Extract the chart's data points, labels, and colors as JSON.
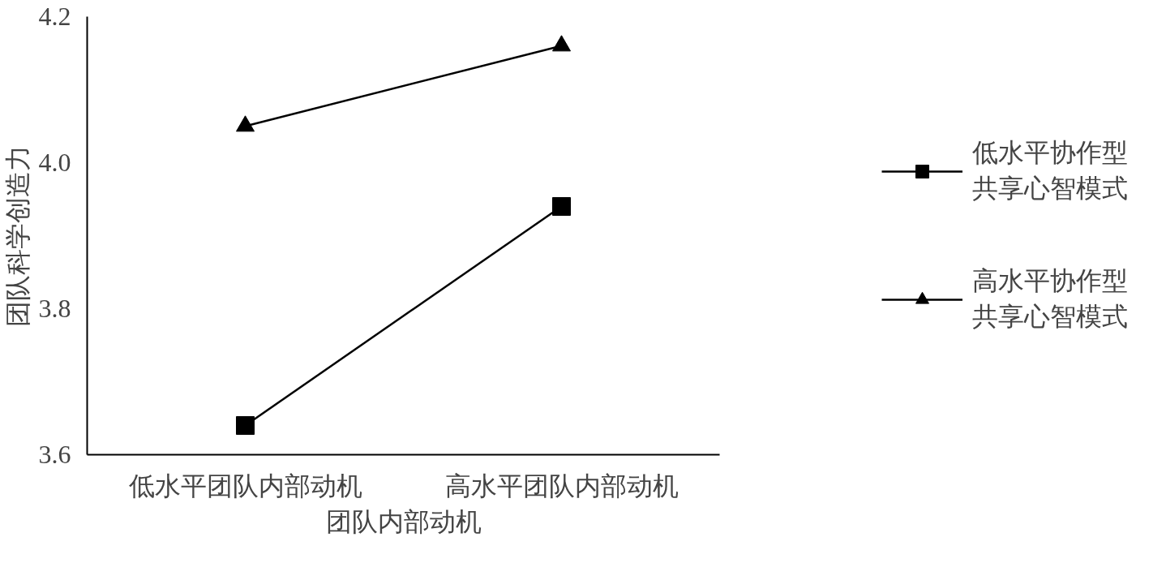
{
  "chart_data": {
    "type": "line",
    "xlabel": "团队内部动机",
    "ylabel": "团队科学创造力",
    "categories": [
      "低水平团队内部动机",
      "高水平团队内部动机"
    ],
    "series": [
      {
        "name": "低水平协作型共享心智模式",
        "color": "#000000",
        "marker": "square",
        "values": [
          3.64,
          3.94
        ]
      },
      {
        "name": "高水平协作型共享心智模式",
        "color": "#000000",
        "marker": "triangle",
        "values": [
          4.05,
          4.16
        ]
      }
    ],
    "ylim": [
      3.6,
      4.2
    ],
    "yticks": [
      3.6,
      3.8,
      {
        "value": 4.0,
        "label": "4.0"
      },
      4.2
    ],
    "grid": false,
    "legend": "right",
    "line_style": "solid"
  }
}
